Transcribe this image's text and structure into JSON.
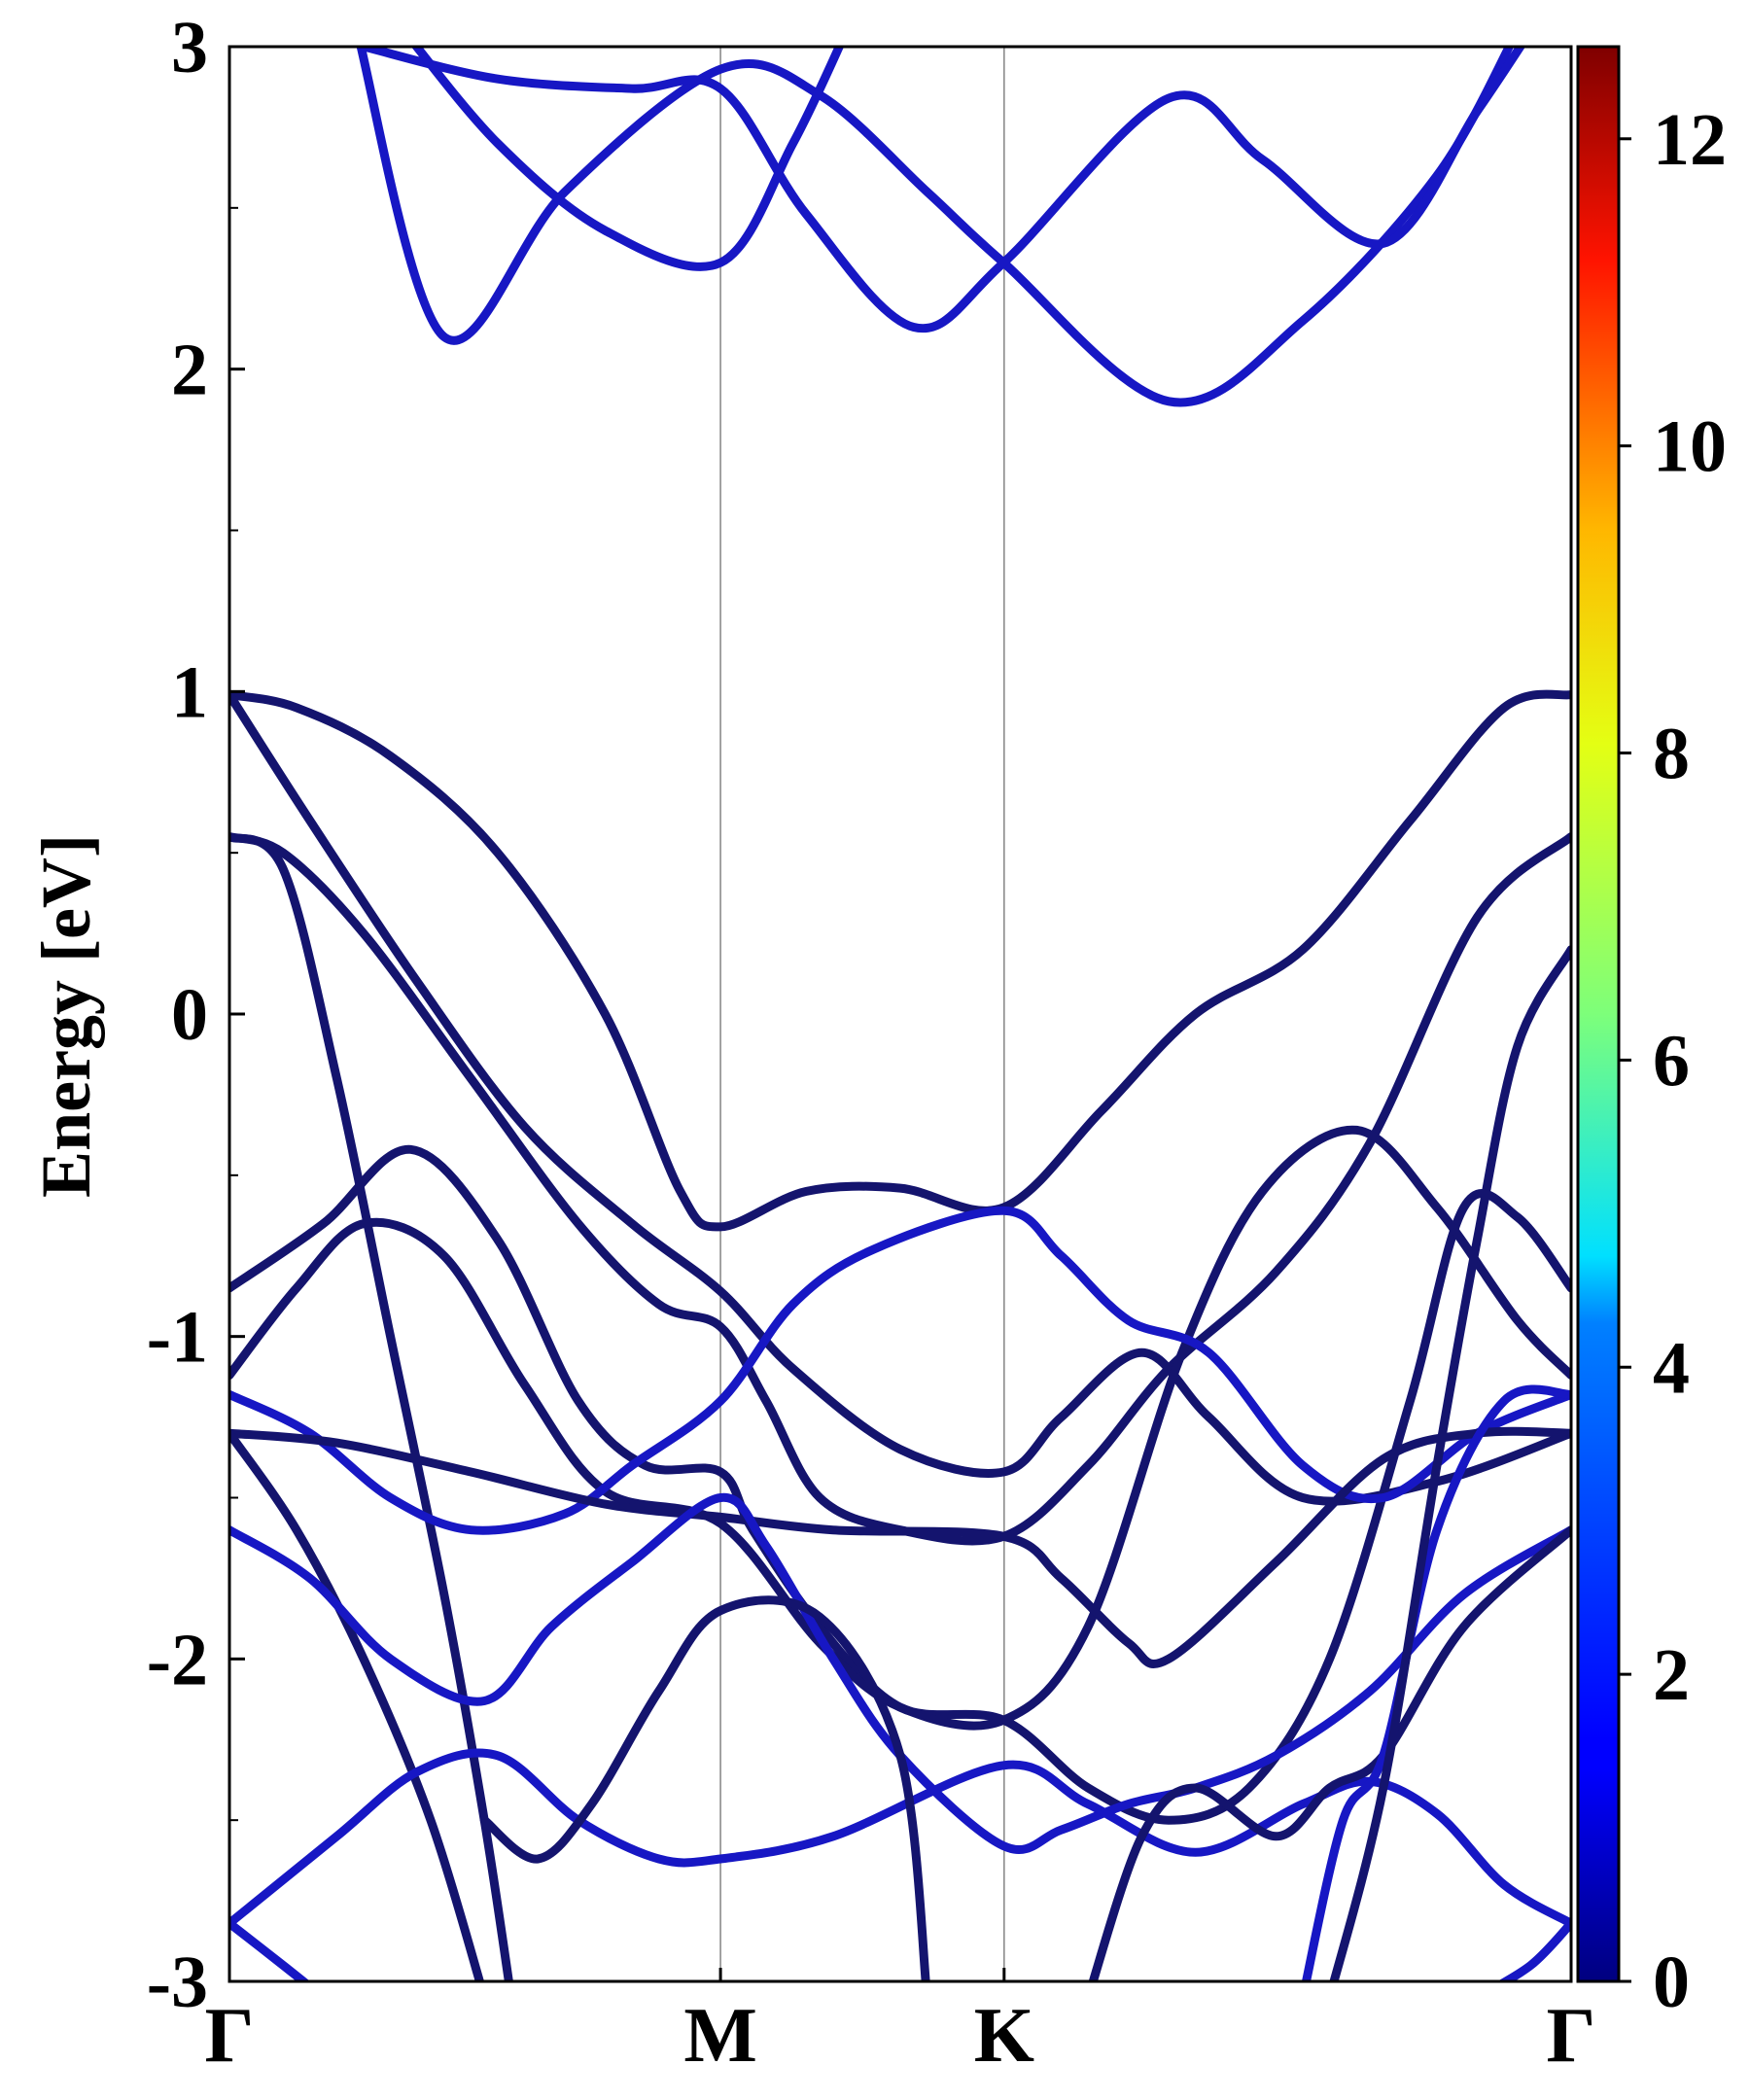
{
  "chart_data": {
    "type": "line",
    "xlabel": "",
    "ylabel": "Energy [eV]",
    "ylim": [
      -3,
      3
    ],
    "xlim": [
      0,
      1
    ],
    "y_ticks": [
      {
        "value": -3,
        "label": "-3"
      },
      {
        "value": -2,
        "label": "-2"
      },
      {
        "value": -1,
        "label": "-1"
      },
      {
        "value": 0,
        "label": "0"
      },
      {
        "value": 1,
        "label": "1"
      },
      {
        "value": 2,
        "label": "2"
      },
      {
        "value": 3,
        "label": "3"
      }
    ],
    "y_minor_ticks": [
      -2.5,
      -1.5,
      -0.5,
      0.5,
      1.5,
      2.5
    ],
    "kpoints": [
      {
        "label": "Γ",
        "x": 0
      },
      {
        "label": "M",
        "x": 0.366
      },
      {
        "label": "K",
        "x": 0.5774
      },
      {
        "label": "Γ",
        "x": 1
      }
    ],
    "grid": false,
    "colorbar": {
      "colormap": "jet",
      "min": 0,
      "max": 12.6,
      "ticks": [
        {
          "value": 0,
          "label": "0"
        },
        {
          "value": 2,
          "label": "2"
        },
        {
          "value": 4,
          "label": "4"
        },
        {
          "value": 6,
          "label": "6"
        },
        {
          "value": 8,
          "label": "8"
        },
        {
          "value": 10,
          "label": "10"
        },
        {
          "value": 12,
          "label": "12"
        }
      ]
    },
    "colors": {
      "dark_band": "#14146e",
      "blue_band": "#1717c4",
      "kpath_line": "#8c8c8c"
    },
    "series": [
      {
        "color": "blue",
        "points": [
          [
            0.095,
            3.05
          ],
          [
            0.16,
            2.1
          ],
          [
            0.25,
            2.55
          ],
          [
            0.366,
            2.93
          ],
          [
            0.44,
            2.85
          ],
          [
            0.52,
            2.55
          ],
          [
            0.577,
            2.33
          ],
          [
            0.7,
            1.9
          ],
          [
            0.8,
            2.15
          ],
          [
            0.9,
            2.6
          ],
          [
            0.96,
            3.05
          ]
        ]
      },
      {
        "color": "blue",
        "points": [
          [
            0.1,
            3.0
          ],
          [
            0.2,
            2.9
          ],
          [
            0.3,
            2.87
          ],
          [
            0.366,
            2.87
          ],
          [
            0.43,
            2.48
          ],
          [
            0.51,
            2.13
          ],
          [
            0.577,
            2.33
          ],
          [
            0.7,
            2.84
          ],
          [
            0.77,
            2.65
          ],
          [
            0.86,
            2.39
          ],
          [
            0.93,
            2.8
          ],
          [
            0.97,
            3.05
          ]
        ]
      },
      {
        "color": "blue",
        "points": [
          [
            0.13,
            3.05
          ],
          [
            0.2,
            2.7
          ],
          [
            0.28,
            2.43
          ],
          [
            0.366,
            2.33
          ],
          [
            0.42,
            2.7
          ],
          [
            0.46,
            3.05
          ]
        ]
      },
      {
        "color": "dark",
        "points": [
          [
            0,
            0.99
          ],
          [
            0.05,
            0.95
          ],
          [
            0.12,
            0.8
          ],
          [
            0.2,
            0.5
          ],
          [
            0.28,
            0.0
          ],
          [
            0.336,
            -0.55
          ],
          [
            0.366,
            -0.66
          ],
          [
            0.43,
            -0.55
          ],
          [
            0.5,
            -0.54
          ],
          [
            0.577,
            -0.6
          ],
          [
            0.65,
            -0.3
          ],
          [
            0.72,
            0.0
          ],
          [
            0.8,
            0.2
          ],
          [
            0.88,
            0.6
          ],
          [
            0.95,
            0.95
          ],
          [
            1,
            0.99
          ]
        ]
      },
      {
        "color": "dark",
        "points": [
          [
            0,
            0.99
          ],
          [
            0.06,
            0.6
          ],
          [
            0.14,
            0.1
          ],
          [
            0.22,
            -0.35
          ],
          [
            0.3,
            -0.65
          ],
          [
            0.366,
            -0.86
          ],
          [
            0.42,
            -1.1
          ],
          [
            0.5,
            -1.35
          ],
          [
            0.577,
            -1.42
          ],
          [
            0.62,
            -1.25
          ],
          [
            0.68,
            -1.05
          ],
          [
            0.73,
            -1.25
          ],
          [
            0.8,
            -1.5
          ],
          [
            0.9,
            -1.45
          ],
          [
            1,
            -1.3
          ]
        ]
      },
      {
        "color": "dark",
        "points": [
          [
            0,
            0.55
          ],
          [
            0.04,
            0.5
          ],
          [
            0.1,
            0.25
          ],
          [
            0.18,
            -0.2
          ],
          [
            0.26,
            -0.65
          ],
          [
            0.32,
            -0.9
          ],
          [
            0.366,
            -0.97
          ],
          [
            0.4,
            -1.2
          ],
          [
            0.44,
            -1.5
          ],
          [
            0.5,
            -1.6
          ],
          [
            0.577,
            -1.62
          ],
          [
            0.64,
            -1.4
          ],
          [
            0.7,
            -1.1
          ],
          [
            0.78,
            -0.8
          ],
          [
            0.85,
            -0.4
          ],
          [
            0.93,
            0.3
          ],
          [
            1,
            0.55
          ]
        ]
      },
      {
        "color": "dark",
        "points": [
          [
            0,
            0.55
          ],
          [
            0.04,
            0.45
          ],
          [
            0.08,
            -0.2
          ],
          [
            0.12,
            -1.0
          ],
          [
            0.16,
            -1.8
          ],
          [
            0.19,
            -2.5
          ],
          [
            0.21,
            -3.05
          ]
        ]
      },
      {
        "color": "dark",
        "points": [
          [
            0,
            -0.85
          ],
          [
            0.07,
            -0.65
          ],
          [
            0.135,
            -0.42
          ],
          [
            0.2,
            -0.7
          ],
          [
            0.26,
            -1.2
          ],
          [
            0.31,
            -1.4
          ],
          [
            0.366,
            -1.42
          ],
          [
            0.39,
            -1.6
          ],
          [
            0.44,
            -1.9
          ],
          [
            0.5,
            -2.15
          ],
          [
            0.577,
            -2.19
          ],
          [
            0.64,
            -2.4
          ],
          [
            0.7,
            -2.5
          ],
          [
            0.76,
            -2.4
          ],
          [
            0.82,
            -2.0
          ],
          [
            0.88,
            -1.2
          ],
          [
            0.92,
            -0.6
          ],
          [
            0.96,
            -0.63
          ],
          [
            1,
            -0.85
          ]
        ]
      },
      {
        "color": "dark",
        "points": [
          [
            0,
            -1.12
          ],
          [
            0.05,
            -0.85
          ],
          [
            0.1,
            -0.65
          ],
          [
            0.16,
            -0.75
          ],
          [
            0.22,
            -1.15
          ],
          [
            0.28,
            -1.48
          ],
          [
            0.366,
            -1.58
          ],
          [
            0.44,
            -1.95
          ],
          [
            0.5,
            -2.15
          ],
          [
            0.577,
            -2.19
          ],
          [
            0.64,
            -1.9
          ],
          [
            0.71,
            -1.05
          ],
          [
            0.77,
            -0.55
          ],
          [
            0.84,
            -0.36
          ],
          [
            0.9,
            -0.6
          ],
          [
            0.96,
            -0.95
          ],
          [
            1,
            -1.12
          ]
        ]
      },
      {
        "color": "blue",
        "points": [
          [
            0,
            -1.18
          ],
          [
            0.06,
            -1.3
          ],
          [
            0.12,
            -1.5
          ],
          [
            0.18,
            -1.6
          ],
          [
            0.25,
            -1.55
          ],
          [
            0.3,
            -1.4
          ],
          [
            0.366,
            -1.2
          ],
          [
            0.42,
            -0.9
          ],
          [
            0.48,
            -0.73
          ],
          [
            0.577,
            -0.61
          ],
          [
            0.62,
            -0.75
          ],
          [
            0.67,
            -0.95
          ],
          [
            0.73,
            -1.05
          ],
          [
            0.8,
            -1.4
          ],
          [
            0.86,
            -1.5
          ],
          [
            0.93,
            -1.3
          ],
          [
            1,
            -1.18
          ]
        ]
      },
      {
        "color": "dark",
        "points": [
          [
            0,
            -1.3
          ],
          [
            0.08,
            -1.33
          ],
          [
            0.18,
            -1.42
          ],
          [
            0.28,
            -1.52
          ],
          [
            0.366,
            -1.56
          ],
          [
            0.45,
            -1.6
          ],
          [
            0.577,
            -1.62
          ],
          [
            0.62,
            -1.75
          ],
          [
            0.67,
            -1.95
          ],
          [
            0.7,
            -2.0
          ],
          [
            0.78,
            -1.7
          ],
          [
            0.86,
            -1.38
          ],
          [
            0.93,
            -1.3
          ],
          [
            1,
            -1.3
          ]
        ]
      },
      {
        "color": "dark",
        "points": [
          [
            0,
            -1.3
          ],
          [
            0.05,
            -1.6
          ],
          [
            0.1,
            -2.0
          ],
          [
            0.15,
            -2.5
          ],
          [
            0.19,
            -3.05
          ]
        ]
      },
      {
        "color": "blue",
        "points": [
          [
            0,
            -1.6
          ],
          [
            0.06,
            -1.75
          ],
          [
            0.12,
            -2.0
          ],
          [
            0.19,
            -2.13
          ],
          [
            0.24,
            -1.9
          ],
          [
            0.3,
            -1.7
          ],
          [
            0.366,
            -1.5
          ],
          [
            0.4,
            -1.65
          ],
          [
            0.45,
            -2.0
          ],
          [
            0.5,
            -2.3
          ],
          [
            0.577,
            -2.58
          ],
          [
            0.62,
            -2.53
          ],
          [
            0.67,
            -2.45
          ],
          [
            0.72,
            -2.4
          ],
          [
            0.78,
            -2.3
          ],
          [
            0.85,
            -2.1
          ],
          [
            0.92,
            -1.8
          ],
          [
            1,
            -1.6
          ]
        ]
      },
      {
        "color": "blue",
        "points": [
          [
            0,
            -2.82
          ],
          [
            0.08,
            -2.55
          ],
          [
            0.14,
            -2.35
          ],
          [
            0.2,
            -2.3
          ],
          [
            0.26,
            -2.5
          ],
          [
            0.32,
            -2.62
          ],
          [
            0.366,
            -2.62
          ],
          [
            0.45,
            -2.55
          ],
          [
            0.577,
            -2.33
          ],
          [
            0.64,
            -2.45
          ],
          [
            0.72,
            -2.6
          ],
          [
            0.8,
            -2.45
          ],
          [
            0.85,
            -2.38
          ],
          [
            0.9,
            -2.48
          ],
          [
            0.95,
            -2.7
          ],
          [
            1,
            -2.82
          ]
        ]
      },
      {
        "color": "dark",
        "points": [
          [
            0.19,
            -2.5
          ],
          [
            0.23,
            -2.62
          ],
          [
            0.27,
            -2.45
          ],
          [
            0.32,
            -2.1
          ],
          [
            0.366,
            -1.85
          ],
          [
            0.44,
            -1.87
          ],
          [
            0.5,
            -2.3
          ],
          [
            0.52,
            -3.05
          ]
        ]
      },
      {
        "color": "dark",
        "points": [
          [
            0.64,
            -3.05
          ],
          [
            0.68,
            -2.55
          ],
          [
            0.72,
            -2.4
          ],
          [
            0.78,
            -2.55
          ],
          [
            0.82,
            -2.4
          ],
          [
            0.86,
            -2.3
          ],
          [
            0.92,
            -1.9
          ],
          [
            1,
            -1.6
          ]
        ]
      },
      {
        "color": "blue",
        "points": [
          [
            0,
            -2.82
          ],
          [
            0.04,
            -2.95
          ],
          [
            0.07,
            -3.05
          ]
        ]
      },
      {
        "color": "blue",
        "points": [
          [
            0.93,
            -3.05
          ],
          [
            0.97,
            -2.95
          ],
          [
            1,
            -2.82
          ]
        ]
      },
      {
        "color": "blue",
        "points": [
          [
            0.8,
            -3.05
          ],
          [
            0.83,
            -2.5
          ],
          [
            0.86,
            -2.3
          ],
          [
            0.9,
            -1.6
          ],
          [
            0.95,
            -1.2
          ],
          [
            1,
            -1.18
          ]
        ]
      },
      {
        "color": "dark",
        "points": [
          [
            0.82,
            -3.05
          ],
          [
            0.86,
            -2.4
          ],
          [
            0.9,
            -1.4
          ],
          [
            0.93,
            -0.7
          ],
          [
            0.96,
            -0.1
          ],
          [
            1,
            0.2
          ]
        ]
      }
    ]
  }
}
